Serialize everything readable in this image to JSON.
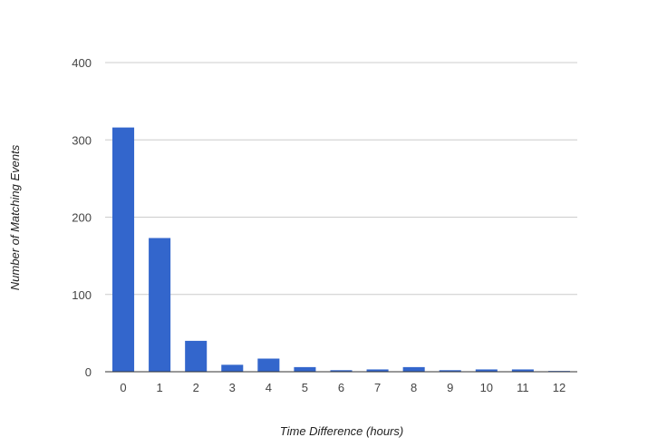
{
  "chart_data": {
    "type": "bar",
    "title": "",
    "xlabel": "Time Difference (hours)",
    "ylabel": "Number of Matching Events",
    "categories": [
      "0",
      "1",
      "2",
      "3",
      "4",
      "5",
      "6",
      "7",
      "8",
      "9",
      "10",
      "11",
      "12"
    ],
    "values": [
      316,
      173,
      40,
      9,
      17,
      6,
      2,
      3,
      6,
      2,
      3,
      3,
      1
    ],
    "ylim": [
      0,
      400
    ],
    "yticks": [
      "0",
      "100",
      "200",
      "300",
      "400"
    ],
    "grid": true,
    "legend": "none",
    "colors": {
      "bar": "#3366cc",
      "grid": "#cccccc",
      "axis": "#333333"
    }
  }
}
